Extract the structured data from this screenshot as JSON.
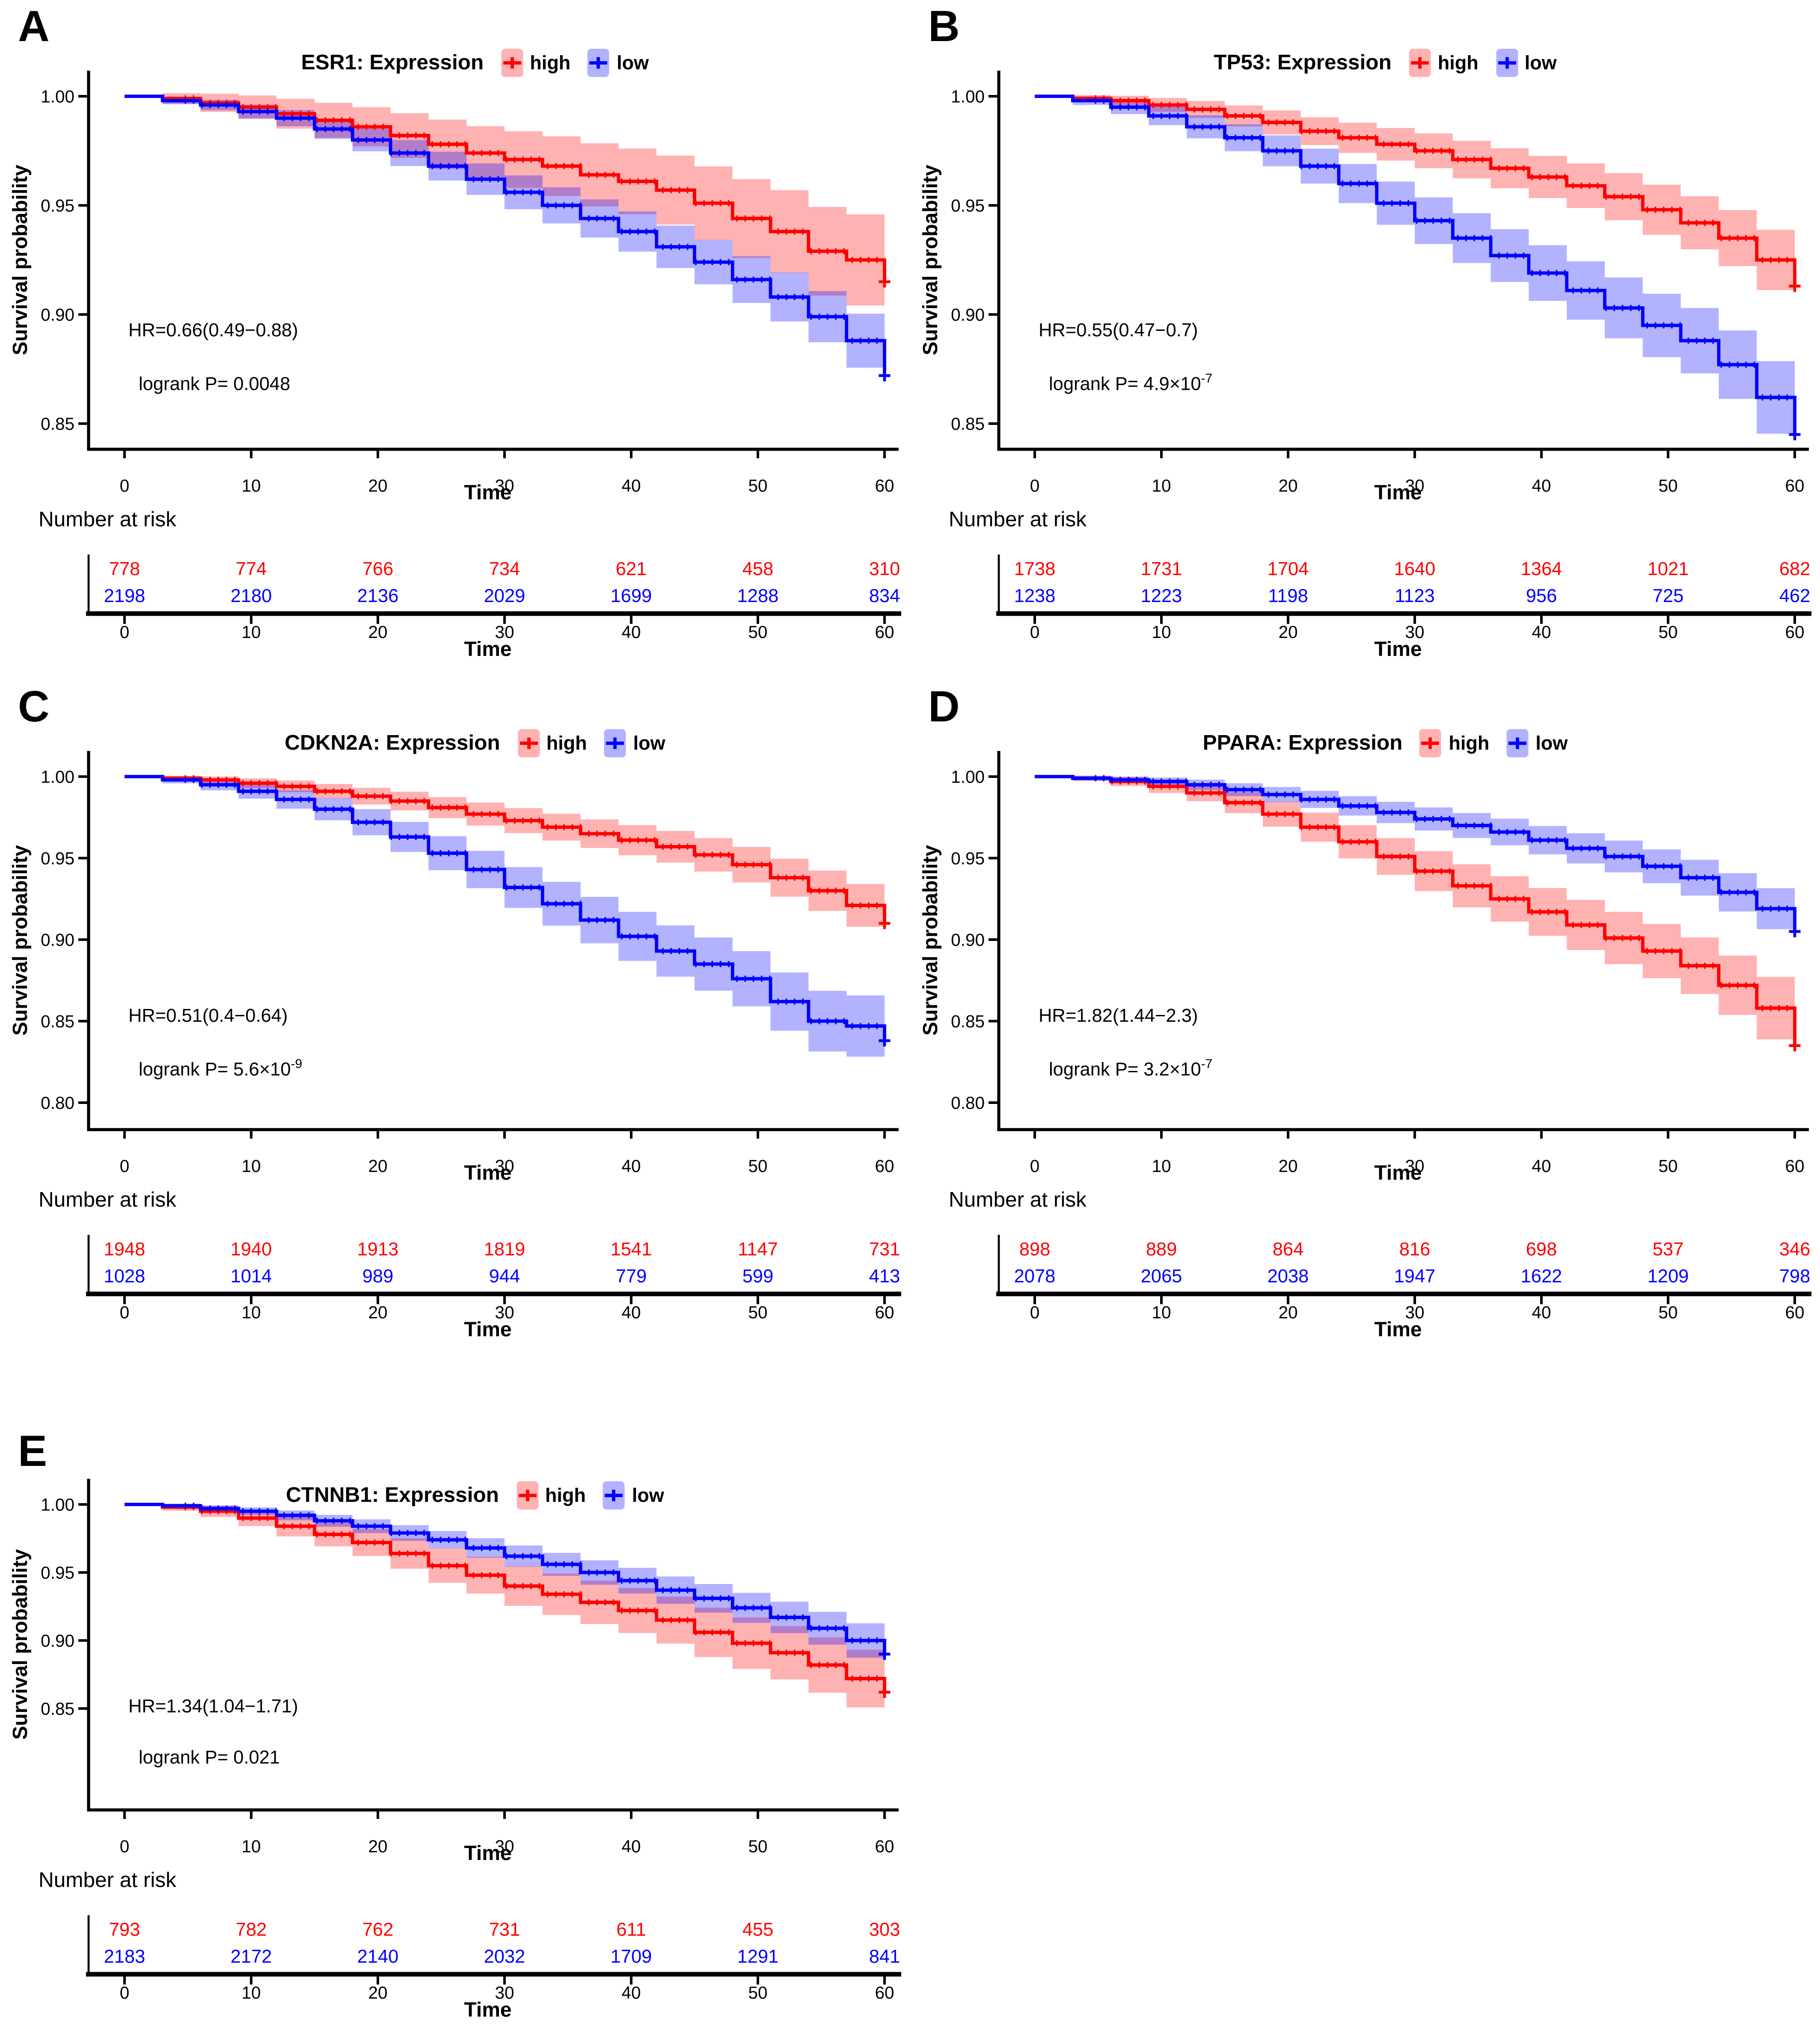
{
  "figure": {
    "y_axis_label": "Survival probability",
    "x_axis_label": "Time",
    "risk_header_label": "Number at risk",
    "legend_high_label": "high",
    "legend_low_label": "low",
    "colors": {
      "high_line": "#FF0000",
      "low_line": "#0000FF",
      "high_band": "rgba(255,0,0,0.30)",
      "low_band": "rgba(0,0,255,0.30)",
      "axis": "#000000"
    }
  },
  "panels": [
    {
      "letter": "A",
      "title": "ESR1: Expression",
      "hr_label": "HR=0.66(0.49−0.88)",
      "logrank_prefix": "logrank P= 0.0048",
      "logrank_exp": "",
      "y_ticks": [
        "1.00",
        "0.95",
        "0.90",
        "0.85"
      ],
      "x_ticks": [
        "0",
        "10",
        "20",
        "30",
        "40",
        "50",
        "60"
      ]
    },
    {
      "letter": "B",
      "title": "TP53: Expression",
      "hr_label": "HR=0.55(0.47−0.7)",
      "logrank_prefix": "logrank P= 4.9×10",
      "logrank_exp": "-7",
      "y_ticks": [
        "1.00",
        "0.95",
        "0.90",
        "0.85"
      ],
      "x_ticks": [
        "0",
        "10",
        "20",
        "30",
        "40",
        "50",
        "60"
      ]
    },
    {
      "letter": "C",
      "title": "CDKN2A: Expression",
      "hr_label": "HR=0.51(0.4−0.64)",
      "logrank_prefix": "logrank P= 5.6×10",
      "logrank_exp": "-9",
      "y_ticks": [
        "1.00",
        "0.95",
        "0.90",
        "0.85",
        "0.80"
      ],
      "x_ticks": [
        "0",
        "10",
        "20",
        "30",
        "40",
        "50",
        "60"
      ]
    },
    {
      "letter": "D",
      "title": "PPARA: Expression",
      "hr_label": "HR=1.82(1.44−2.3)",
      "logrank_prefix": "logrank P= 3.2×10",
      "logrank_exp": "-7",
      "y_ticks": [
        "1.00",
        "0.95",
        "0.90",
        "0.85",
        "0.80"
      ],
      "x_ticks": [
        "0",
        "10",
        "20",
        "30",
        "40",
        "50",
        "60"
      ]
    },
    {
      "letter": "E",
      "title": "CTNNB1: Expression",
      "hr_label": "HR=1.34(1.04−1.71)",
      "logrank_prefix": "logrank P= 0.021",
      "logrank_exp": "",
      "y_ticks": [
        "1.00",
        "0.95",
        "0.90",
        "0.85"
      ],
      "x_ticks": [
        "0",
        "10",
        "20",
        "30",
        "40",
        "50",
        "60"
      ]
    }
  ],
  "chart_data": [
    {
      "type": "line",
      "subtype": "kaplan-meier-survival",
      "title": "ESR1: Expression",
      "xlabel": "Time",
      "ylabel": "Survival probability",
      "xlim": [
        0,
        60
      ],
      "xticks": [
        0,
        10,
        20,
        30,
        40,
        50,
        60
      ],
      "yticks": [
        1.0,
        0.95,
        0.9,
        0.85
      ],
      "legend": [
        "high",
        "low"
      ],
      "legend_position": "top",
      "annotations": {
        "hr": "HR=0.66(0.49−0.88)",
        "logrank_p": "0.0048"
      },
      "t": [
        0,
        3,
        6,
        9,
        12,
        15,
        18,
        21,
        24,
        27,
        30,
        33,
        36,
        39,
        42,
        45,
        48,
        51,
        54,
        57,
        60
      ],
      "risk_times": [
        0,
        10,
        20,
        30,
        40,
        50,
        60
      ],
      "series": [
        {
          "name": "high",
          "color": "#FF0000",
          "n": 778,
          "survival": [
            1.0,
            0.999,
            0.997,
            0.995,
            0.992,
            0.989,
            0.986,
            0.982,
            0.978,
            0.974,
            0.971,
            0.968,
            0.964,
            0.961,
            0.957,
            0.951,
            0.944,
            0.938,
            0.929,
            0.925,
            0.915
          ],
          "risk_counts": [
            778,
            774,
            766,
            734,
            621,
            458,
            310
          ]
        },
        {
          "name": "low",
          "color": "#0000FF",
          "n": 2198,
          "survival": [
            1.0,
            0.998,
            0.996,
            0.993,
            0.99,
            0.985,
            0.98,
            0.974,
            0.968,
            0.962,
            0.956,
            0.95,
            0.944,
            0.938,
            0.931,
            0.924,
            0.916,
            0.908,
            0.899,
            0.888,
            0.872
          ],
          "risk_counts": [
            2198,
            2180,
            2136,
            2029,
            1699,
            1288,
            834
          ]
        }
      ]
    },
    {
      "type": "line",
      "subtype": "kaplan-meier-survival",
      "title": "TP53: Expression",
      "xlabel": "Time",
      "ylabel": "Survival probability",
      "xlim": [
        0,
        60
      ],
      "xticks": [
        0,
        10,
        20,
        30,
        40,
        50,
        60
      ],
      "yticks": [
        1.0,
        0.95,
        0.9,
        0.85
      ],
      "legend": [
        "high",
        "low"
      ],
      "legend_position": "top",
      "annotations": {
        "hr": "HR=0.55(0.47−0.7)",
        "logrank_p": "4.9e-7"
      },
      "t": [
        0,
        3,
        6,
        9,
        12,
        15,
        18,
        21,
        24,
        27,
        30,
        33,
        36,
        39,
        42,
        45,
        48,
        51,
        54,
        57,
        60
      ],
      "risk_times": [
        0,
        10,
        20,
        30,
        40,
        50,
        60
      ],
      "series": [
        {
          "name": "high",
          "color": "#FF0000",
          "n": 1738,
          "survival": [
            1.0,
            0.999,
            0.998,
            0.996,
            0.994,
            0.991,
            0.988,
            0.984,
            0.981,
            0.978,
            0.975,
            0.971,
            0.967,
            0.963,
            0.959,
            0.954,
            0.948,
            0.942,
            0.935,
            0.925,
            0.913
          ],
          "risk_counts": [
            1738,
            1731,
            1704,
            1640,
            1364,
            1021,
            682
          ]
        },
        {
          "name": "low",
          "color": "#0000FF",
          "n": 1238,
          "survival": [
            1.0,
            0.998,
            0.995,
            0.991,
            0.986,
            0.981,
            0.975,
            0.968,
            0.96,
            0.951,
            0.943,
            0.935,
            0.927,
            0.919,
            0.911,
            0.903,
            0.895,
            0.888,
            0.877,
            0.862,
            0.845
          ],
          "risk_counts": [
            1238,
            1223,
            1198,
            1123,
            956,
            725,
            462
          ]
        }
      ]
    },
    {
      "type": "line",
      "subtype": "kaplan-meier-survival",
      "title": "CDKN2A: Expression",
      "xlabel": "Time",
      "ylabel": "Survival probability",
      "xlim": [
        0,
        60
      ],
      "xticks": [
        0,
        10,
        20,
        30,
        40,
        50,
        60
      ],
      "yticks": [
        1.0,
        0.95,
        0.9,
        0.85,
        0.8
      ],
      "legend": [
        "high",
        "low"
      ],
      "legend_position": "top",
      "annotations": {
        "hr": "HR=0.51(0.4−0.64)",
        "logrank_p": "5.6e-9"
      },
      "t": [
        0,
        3,
        6,
        9,
        12,
        15,
        18,
        21,
        24,
        27,
        30,
        33,
        36,
        39,
        42,
        45,
        48,
        51,
        54,
        57,
        60
      ],
      "risk_times": [
        0,
        10,
        20,
        30,
        40,
        50,
        60
      ],
      "series": [
        {
          "name": "high",
          "color": "#FF0000",
          "n": 1948,
          "survival": [
            1.0,
            0.999,
            0.998,
            0.996,
            0.994,
            0.991,
            0.988,
            0.985,
            0.981,
            0.977,
            0.973,
            0.969,
            0.965,
            0.961,
            0.957,
            0.952,
            0.946,
            0.938,
            0.93,
            0.921,
            0.91
          ],
          "risk_counts": [
            1948,
            1940,
            1913,
            1819,
            1541,
            1147,
            731
          ]
        },
        {
          "name": "low",
          "color": "#0000FF",
          "n": 1028,
          "survival": [
            1.0,
            0.998,
            0.995,
            0.991,
            0.986,
            0.98,
            0.972,
            0.963,
            0.953,
            0.943,
            0.932,
            0.922,
            0.912,
            0.902,
            0.893,
            0.885,
            0.876,
            0.862,
            0.85,
            0.847,
            0.838
          ],
          "risk_counts": [
            1028,
            1014,
            989,
            944,
            779,
            599,
            413
          ]
        }
      ]
    },
    {
      "type": "line",
      "subtype": "kaplan-meier-survival",
      "title": "PPARA: Expression",
      "xlabel": "Time",
      "ylabel": "Survival probability",
      "xlim": [
        0,
        60
      ],
      "xticks": [
        0,
        10,
        20,
        30,
        40,
        50,
        60
      ],
      "yticks": [
        1.0,
        0.95,
        0.9,
        0.85,
        0.8
      ],
      "legend": [
        "high",
        "low"
      ],
      "legend_position": "top",
      "annotations": {
        "hr": "HR=1.82(1.44−2.3)",
        "logrank_p": "3.2e-7"
      },
      "t": [
        0,
        3,
        6,
        9,
        12,
        15,
        18,
        21,
        24,
        27,
        30,
        33,
        36,
        39,
        42,
        45,
        48,
        51,
        54,
        57,
        60
      ],
      "risk_times": [
        0,
        10,
        20,
        30,
        40,
        50,
        60
      ],
      "series": [
        {
          "name": "high",
          "color": "#FF0000",
          "n": 898,
          "survival": [
            1.0,
            0.999,
            0.997,
            0.994,
            0.99,
            0.984,
            0.977,
            0.969,
            0.96,
            0.951,
            0.942,
            0.933,
            0.925,
            0.917,
            0.909,
            0.901,
            0.893,
            0.884,
            0.872,
            0.858,
            0.835
          ],
          "risk_counts": [
            898,
            889,
            864,
            816,
            698,
            537,
            346
          ]
        },
        {
          "name": "low",
          "color": "#0000FF",
          "n": 2078,
          "survival": [
            1.0,
            0.999,
            0.998,
            0.997,
            0.995,
            0.992,
            0.989,
            0.986,
            0.982,
            0.978,
            0.974,
            0.97,
            0.966,
            0.961,
            0.956,
            0.951,
            0.945,
            0.938,
            0.929,
            0.919,
            0.905
          ],
          "risk_counts": [
            2078,
            2065,
            2038,
            1947,
            1622,
            1209,
            798
          ]
        }
      ]
    },
    {
      "type": "line",
      "subtype": "kaplan-meier-survival",
      "title": "CTNNB1: Expression",
      "xlabel": "Time",
      "ylabel": "Survival probability",
      "xlim": [
        0,
        60
      ],
      "xticks": [
        0,
        10,
        20,
        30,
        40,
        50,
        60
      ],
      "yticks": [
        1.0,
        0.95,
        0.9,
        0.85
      ],
      "legend": [
        "high",
        "low"
      ],
      "legend_position": "top",
      "annotations": {
        "hr": "HR=1.34(1.04−1.71)",
        "logrank_p": "0.021"
      },
      "t": [
        0,
        3,
        6,
        9,
        12,
        15,
        18,
        21,
        24,
        27,
        30,
        33,
        36,
        39,
        42,
        45,
        48,
        51,
        54,
        57,
        60
      ],
      "risk_times": [
        0,
        10,
        20,
        30,
        40,
        50,
        60
      ],
      "series": [
        {
          "name": "high",
          "color": "#FF0000",
          "n": 793,
          "survival": [
            1.0,
            0.998,
            0.995,
            0.99,
            0.984,
            0.978,
            0.972,
            0.964,
            0.955,
            0.948,
            0.94,
            0.934,
            0.928,
            0.922,
            0.915,
            0.906,
            0.898,
            0.891,
            0.882,
            0.872,
            0.862
          ],
          "risk_counts": [
            793,
            782,
            762,
            731,
            611,
            455,
            303
          ]
        },
        {
          "name": "low",
          "color": "#0000FF",
          "n": 2183,
          "survival": [
            1.0,
            0.999,
            0.997,
            0.995,
            0.992,
            0.988,
            0.984,
            0.979,
            0.974,
            0.968,
            0.962,
            0.956,
            0.95,
            0.944,
            0.937,
            0.931,
            0.924,
            0.917,
            0.909,
            0.9,
            0.89
          ],
          "risk_counts": [
            2183,
            2172,
            2140,
            2032,
            1709,
            1291,
            841
          ]
        }
      ]
    }
  ]
}
